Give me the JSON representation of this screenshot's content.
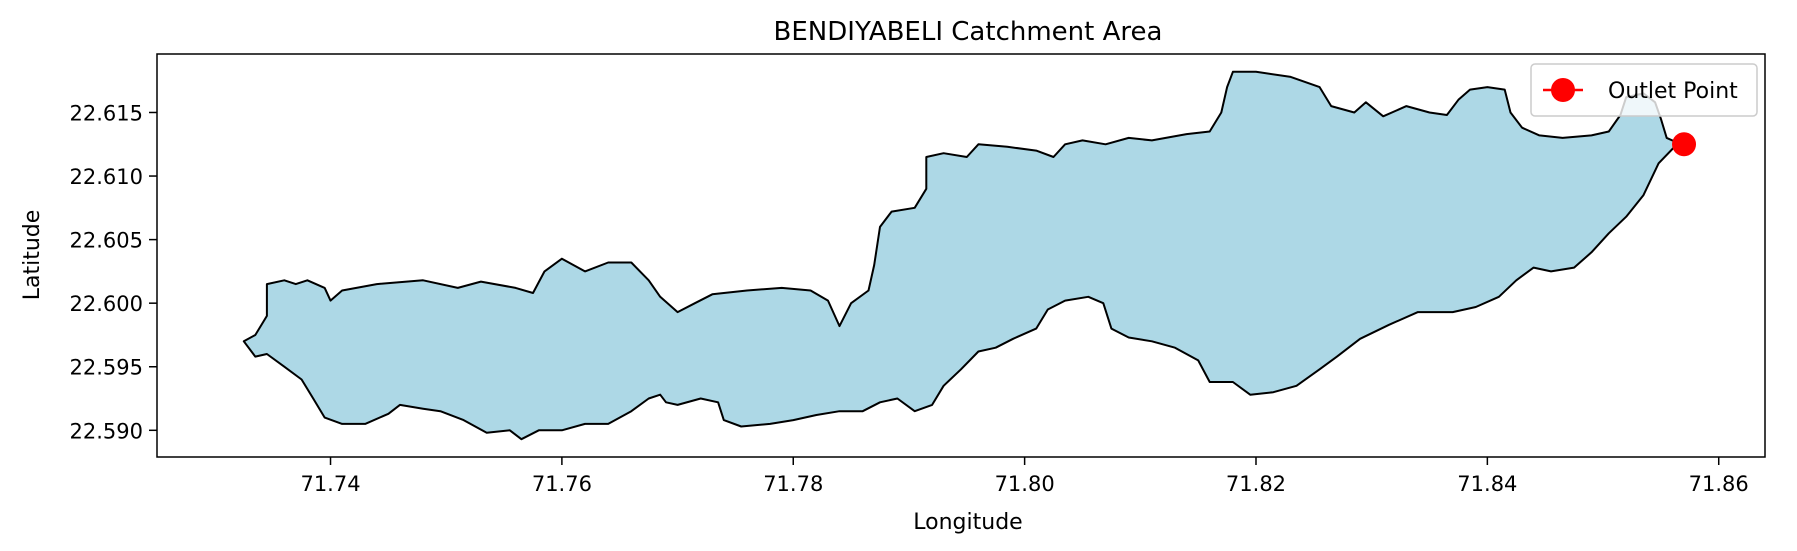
{
  "chart_data": {
    "type": "map",
    "title": "BENDIYABELI Catchment Area",
    "xlabel": "Longitude",
    "ylabel": "Latitude",
    "xlim": [
      71.725,
      71.864
    ],
    "ylim": [
      22.5879,
      22.6196
    ],
    "x_ticks": [
      71.74,
      71.76,
      71.78,
      71.8,
      71.82,
      71.84,
      71.86
    ],
    "x_tick_labels": [
      "71.74",
      "71.76",
      "71.78",
      "71.80",
      "71.82",
      "71.84",
      "71.86"
    ],
    "y_ticks": [
      22.59,
      22.595,
      22.6,
      22.605,
      22.61,
      22.615
    ],
    "y_tick_labels": [
      "22.590",
      "22.595",
      "22.600",
      "22.605",
      "22.610",
      "22.615"
    ],
    "grid": false,
    "legend": {
      "placement": "top-right",
      "entries": [
        {
          "label": "Outlet Point",
          "marker": "circle",
          "color": "#ff0000"
        }
      ]
    },
    "catchment": {
      "fill_color": "#add8e6",
      "edge_color": "#000000",
      "boundary": [
        [
          71.7325,
          22.597
        ],
        [
          71.7335,
          22.5975
        ],
        [
          71.7345,
          22.599
        ],
        [
          71.7345,
          22.6015
        ],
        [
          71.736,
          22.6018
        ],
        [
          71.737,
          22.6015
        ],
        [
          71.738,
          22.6018
        ],
        [
          71.7395,
          22.6012
        ],
        [
          71.74,
          22.6002
        ],
        [
          71.741,
          22.601
        ],
        [
          71.744,
          22.6015
        ],
        [
          71.748,
          22.6018
        ],
        [
          71.751,
          22.6012
        ],
        [
          71.753,
          22.6017
        ],
        [
          71.756,
          22.6012
        ],
        [
          71.7575,
          22.6008
        ],
        [
          71.7585,
          22.6025
        ],
        [
          71.76,
          22.6035
        ],
        [
          71.762,
          22.6025
        ],
        [
          71.764,
          22.6032
        ],
        [
          71.766,
          22.6032
        ],
        [
          71.7675,
          22.6018
        ],
        [
          71.7685,
          22.6005
        ],
        [
          71.77,
          22.5993
        ],
        [
          71.7715,
          22.6
        ],
        [
          71.773,
          22.6007
        ],
        [
          71.776,
          22.601
        ],
        [
          71.779,
          22.6012
        ],
        [
          71.7815,
          22.601
        ],
        [
          71.783,
          22.6002
        ],
        [
          71.784,
          22.5982
        ],
        [
          71.785,
          22.6
        ],
        [
          71.7865,
          22.601
        ],
        [
          71.787,
          22.603
        ],
        [
          71.7875,
          22.606
        ],
        [
          71.7885,
          22.6072
        ],
        [
          71.7905,
          22.6075
        ],
        [
          71.7915,
          22.609
        ],
        [
          71.7915,
          22.6115
        ],
        [
          71.793,
          22.6118
        ],
        [
          71.795,
          22.6115
        ],
        [
          71.796,
          22.6125
        ],
        [
          71.7985,
          22.6123
        ],
        [
          71.801,
          22.612
        ],
        [
          71.8025,
          22.6115
        ],
        [
          71.8035,
          22.6125
        ],
        [
          71.805,
          22.6128
        ],
        [
          71.807,
          22.6125
        ],
        [
          71.809,
          22.613
        ],
        [
          71.811,
          22.6128
        ],
        [
          71.814,
          22.6133
        ],
        [
          71.816,
          22.6135
        ],
        [
          71.817,
          22.615
        ],
        [
          71.8175,
          22.617
        ],
        [
          71.818,
          22.6182
        ],
        [
          71.82,
          22.6182
        ],
        [
          71.823,
          22.6178
        ],
        [
          71.8255,
          22.617
        ],
        [
          71.8265,
          22.6155
        ],
        [
          71.8285,
          22.615
        ],
        [
          71.8295,
          22.6158
        ],
        [
          71.831,
          22.6147
        ],
        [
          71.833,
          22.6155
        ],
        [
          71.835,
          22.615
        ],
        [
          71.8365,
          22.6148
        ],
        [
          71.8375,
          22.616
        ],
        [
          71.8385,
          22.6168
        ],
        [
          71.84,
          22.617
        ],
        [
          71.8415,
          22.6168
        ],
        [
          71.842,
          22.615
        ],
        [
          71.843,
          22.6138
        ],
        [
          71.8445,
          22.6132
        ],
        [
          71.8465,
          22.613
        ],
        [
          71.849,
          22.6132
        ],
        [
          71.8505,
          22.6135
        ],
        [
          71.8515,
          22.6148
        ],
        [
          71.852,
          22.6162
        ],
        [
          71.8535,
          22.6165
        ],
        [
          71.8545,
          22.6158
        ],
        [
          71.855,
          22.6145
        ],
        [
          71.8555,
          22.613
        ],
        [
          71.8565,
          22.6126
        ],
        [
          71.8548,
          22.611
        ],
        [
          71.8535,
          22.6085
        ],
        [
          71.852,
          22.6068
        ],
        [
          71.8505,
          22.6055
        ],
        [
          71.849,
          22.604
        ],
        [
          71.8475,
          22.6028
        ],
        [
          71.8455,
          22.6025
        ],
        [
          71.844,
          22.6028
        ],
        [
          71.8425,
          22.6018
        ],
        [
          71.841,
          22.6005
        ],
        [
          71.839,
          22.5997
        ],
        [
          71.837,
          22.5993
        ],
        [
          71.834,
          22.5993
        ],
        [
          71.8315,
          22.5983
        ],
        [
          71.829,
          22.5972
        ],
        [
          71.827,
          22.5958
        ],
        [
          71.8255,
          22.5948
        ],
        [
          71.8235,
          22.5935
        ],
        [
          71.8215,
          22.593
        ],
        [
          71.8195,
          22.5928
        ],
        [
          71.818,
          22.5938
        ],
        [
          71.816,
          22.5938
        ],
        [
          71.815,
          22.5955
        ],
        [
          71.813,
          22.5965
        ],
        [
          71.811,
          22.597
        ],
        [
          71.809,
          22.5973
        ],
        [
          71.8075,
          22.598
        ],
        [
          71.8068,
          22.6
        ],
        [
          71.8055,
          22.6005
        ],
        [
          71.8035,
          22.6002
        ],
        [
          71.802,
          22.5995
        ],
        [
          71.801,
          22.598
        ],
        [
          71.799,
          22.5972
        ],
        [
          71.7975,
          22.5965
        ],
        [
          71.796,
          22.5962
        ],
        [
          71.7945,
          22.5948
        ],
        [
          71.793,
          22.5935
        ],
        [
          71.792,
          22.592
        ],
        [
          71.7905,
          22.5915
        ],
        [
          71.789,
          22.5925
        ],
        [
          71.7875,
          22.5922
        ],
        [
          71.786,
          22.5915
        ],
        [
          71.784,
          22.5915
        ],
        [
          71.782,
          22.5912
        ],
        [
          71.78,
          22.5908
        ],
        [
          71.778,
          22.5905
        ],
        [
          71.7755,
          22.5903
        ],
        [
          71.774,
          22.5908
        ],
        [
          71.7735,
          22.5922
        ],
        [
          71.772,
          22.5925
        ],
        [
          71.77,
          22.592
        ],
        [
          71.769,
          22.5922
        ],
        [
          71.7685,
          22.5928
        ],
        [
          71.7675,
          22.5925
        ],
        [
          71.766,
          22.5915
        ],
        [
          71.764,
          22.5905
        ],
        [
          71.762,
          22.5905
        ],
        [
          71.76,
          22.59
        ],
        [
          71.758,
          22.59
        ],
        [
          71.7565,
          22.5893
        ],
        [
          71.7555,
          22.59
        ],
        [
          71.7535,
          22.5898
        ],
        [
          71.7515,
          22.5908
        ],
        [
          71.7495,
          22.5915
        ],
        [
          71.748,
          22.5917
        ],
        [
          71.746,
          22.592
        ],
        [
          71.745,
          22.5913
        ],
        [
          71.743,
          22.5905
        ],
        [
          71.741,
          22.5905
        ],
        [
          71.7395,
          22.591
        ],
        [
          71.7385,
          22.5925
        ],
        [
          71.7375,
          22.594
        ],
        [
          71.736,
          22.595
        ],
        [
          71.7345,
          22.596
        ],
        [
          71.7335,
          22.5958
        ],
        [
          71.7325,
          22.597
        ]
      ]
    },
    "outlet_point": {
      "lon": 71.857,
      "lat": 22.6125,
      "color": "#ff0000"
    }
  }
}
